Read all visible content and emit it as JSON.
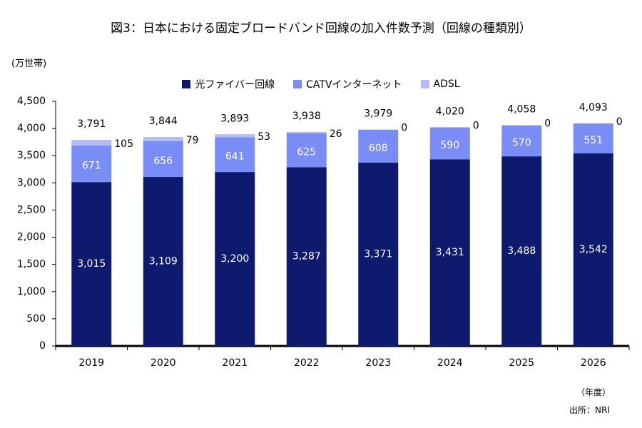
{
  "chart_data": {
    "type": "bar",
    "stacked": true,
    "title": "図3：日本における固定ブロードバンド回線の加入件数予測（回線の種類別）",
    "ylabel": "(万世帯)",
    "xlabel": "（年度）",
    "source": "出所：NRI",
    "ylim": [
      0,
      4500
    ],
    "yticks": [
      "0",
      "500",
      "1,000",
      "1,500",
      "2,000",
      "2,500",
      "3,000",
      "3,500",
      "4,000",
      "4,500"
    ],
    "ytick_values": [
      0,
      500,
      1000,
      1500,
      2000,
      2500,
      3000,
      3500,
      4000,
      4500
    ],
    "categories": [
      "2019",
      "2020",
      "2021",
      "2022",
      "2023",
      "2024",
      "2025",
      "2026"
    ],
    "series": [
      {
        "name": "光ファイバー回線",
        "color": "#0d1a6e",
        "values": [
          3015,
          3109,
          3200,
          3287,
          3371,
          3431,
          3488,
          3542
        ],
        "labels": [
          "3,015",
          "3,109",
          "3,200",
          "3,287",
          "3,371",
          "3,431",
          "3,488",
          "3,542"
        ]
      },
      {
        "name": "CATVインターネット",
        "color": "#7a8cf5",
        "values": [
          671,
          656,
          641,
          625,
          608,
          590,
          570,
          551
        ],
        "labels": [
          "671",
          "656",
          "641",
          "625",
          "608",
          "590",
          "570",
          "551"
        ]
      },
      {
        "name": "ADSL",
        "color": "#b4bcf7",
        "values": [
          105,
          79,
          53,
          26,
          0,
          0,
          0,
          0
        ],
        "labels": [
          "105",
          "79",
          "53",
          "26",
          "0",
          "0",
          "0",
          "0"
        ]
      }
    ],
    "totals": [
      3791,
      3844,
      3893,
      3938,
      3979,
      4020,
      4058,
      4093
    ],
    "total_labels": [
      "3,791",
      "3,844",
      "3,893",
      "3,938",
      "3,979",
      "4,020",
      "4,058",
      "4,093"
    ],
    "grid": false,
    "legend_position": "top-center"
  }
}
